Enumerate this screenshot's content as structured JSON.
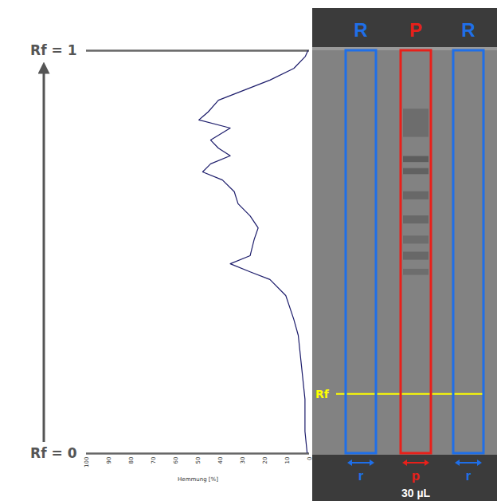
{
  "chart_data": {
    "type": "line",
    "x_label": "Hemmung [%]",
    "xlim": [
      100,
      0
    ],
    "xticks": [
      100,
      90,
      80,
      70,
      60,
      50,
      40,
      30,
      20,
      10,
      0
    ],
    "ylim": [
      0,
      1
    ],
    "yticks": [
      {
        "value": 0,
        "label": "Rf = 0"
      },
      {
        "value": 1,
        "label": "Rf = 1"
      }
    ],
    "color": "#1c1c6b",
    "x": [
      1,
      2,
      2,
      3.5,
      5,
      7,
      10.6,
      17.7,
      26.6,
      35.5,
      26.6,
      24.8,
      23,
      26.6,
      32,
      33.7,
      39,
      47.9,
      44.3,
      35.5,
      40.8,
      44.3,
      35.5,
      49.6,
      45.4,
      40.8,
      17.7,
      7,
      1.8,
      0.7
    ],
    "y": [
      0,
      0.055,
      0.135,
      0.214,
      0.293,
      0.333,
      0.392,
      0.432,
      0.451,
      0.471,
      0.491,
      0.531,
      0.56,
      0.59,
      0.62,
      0.65,
      0.679,
      0.699,
      0.719,
      0.739,
      0.758,
      0.778,
      0.808,
      0.828,
      0.848,
      0.877,
      0.927,
      0.956,
      0.986,
      1
    ],
    "plate": {
      "lanes": [
        {
          "label": "R",
          "sub_label": "r",
          "color": "#1f6fe8"
        },
        {
          "label": "P",
          "sub_label": "p",
          "color": "#e8201a"
        },
        {
          "label": "R",
          "sub_label": "r",
          "color": "#1f6fe8"
        }
      ],
      "volume": "30 µL",
      "rf_marker": {
        "label": "Rf",
        "value": 0.147,
        "color": "#ffff00"
      }
    }
  }
}
